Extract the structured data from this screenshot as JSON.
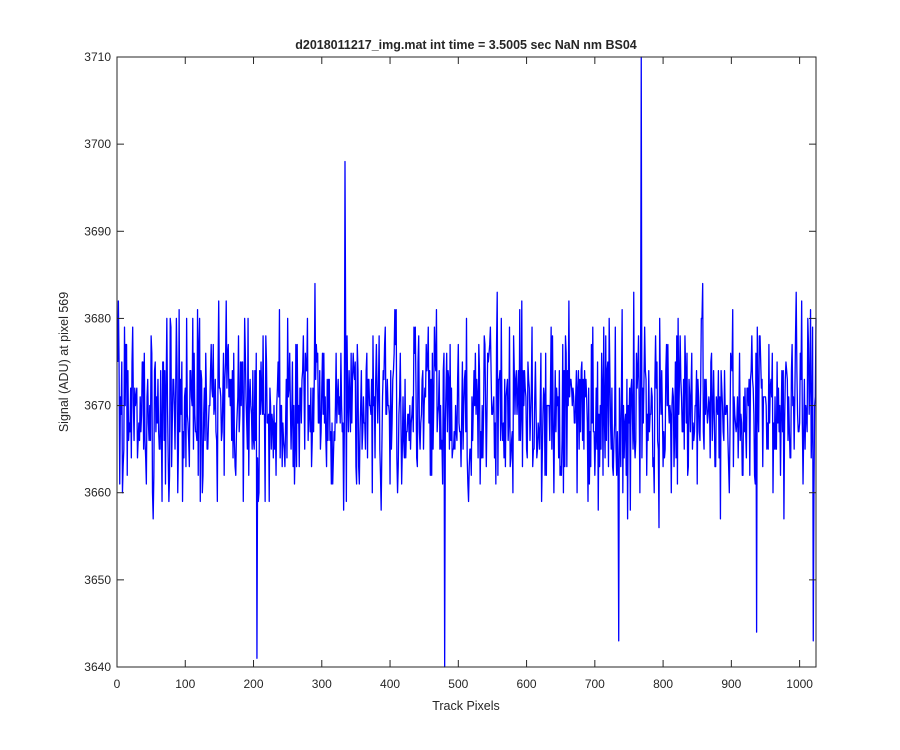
{
  "chart_data": {
    "type": "line",
    "title": "d2018011217_img.mat int time = 3.5005 sec  NaN nm BS04",
    "xlabel": "Track Pixels",
    "ylabel": "Signal (ADU) at pixel 569",
    "xlim": [
      0,
      1024
    ],
    "ylim": [
      3640,
      3710
    ],
    "xticks": [
      0,
      100,
      200,
      300,
      400,
      500,
      600,
      700,
      800,
      900,
      1000
    ],
    "yticks": [
      3640,
      3650,
      3660,
      3670,
      3680,
      3690,
      3700,
      3710
    ],
    "grid": false,
    "line_color": "#0000ff",
    "series": [
      {
        "sample_count": 1024,
        "mean": 3670,
        "noise_halfwidth": 10,
        "notable_points": [
          {
            "x": 205,
            "y": 3641
          },
          {
            "x": 334,
            "y": 3698
          },
          {
            "x": 480,
            "y": 3640
          },
          {
            "x": 735,
            "y": 3643
          },
          {
            "x": 768,
            "y": 3710
          },
          {
            "x": 937,
            "y": 3644
          },
          {
            "x": 1020,
            "y": 3643
          }
        ]
      }
    ]
  }
}
